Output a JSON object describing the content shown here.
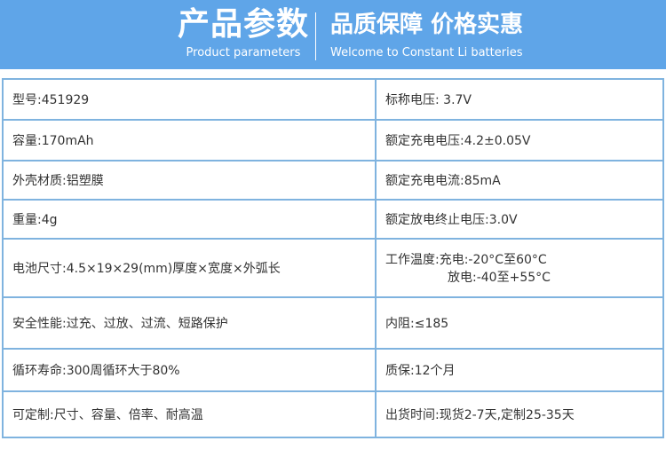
{
  "header": {
    "title": "产品参数",
    "subtitle": "Product parameters",
    "slogan": "品质保障 价格实惠",
    "slogan_sub": "Welcome to Constant Li batteries",
    "background_color": "#5fa5e8"
  },
  "rows": [
    {
      "left": "型号:451929",
      "right": "标称电压: 3.7V"
    },
    {
      "left": "容量:170mAh",
      "right": "额定充电电压:4.2±0.05V"
    },
    {
      "left": "外壳材质:铝塑膜",
      "right": "额定充电电流:85mA"
    },
    {
      "left": "重量:4g",
      "right": "额定放电终止电压:3.0V"
    },
    {
      "left": "电池尺寸:4.5×19×29(mm)厚度×宽度×外弧长",
      "right": "工作温度:充电:-20°C至60°C",
      "right2": "放电:-40至+55°C"
    },
    {
      "left": "安全性能:过充、过放、过流、短路保护",
      "right": "内阻:≤185"
    },
    {
      "left": "循环寿命:300周循环大于80%",
      "right": "质保:12个月"
    },
    {
      "left": "可定制:尺寸、容量、倍率、耐高温",
      "right": "出货时间:现货2-7天,定制25-35天"
    }
  ]
}
